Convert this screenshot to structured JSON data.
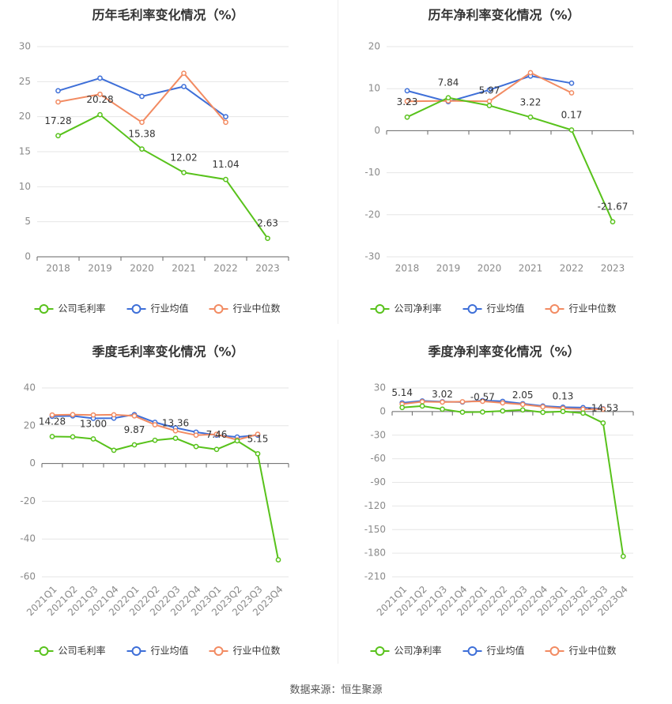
{
  "footer": {
    "source": "数据来源：恒生聚源"
  },
  "colors": {
    "company": "#58c21b",
    "avg": "#3e6fd8",
    "median": "#f28b62",
    "grid": "#e6e6e6",
    "axis": "#666666",
    "tick_text": "#8a8a8a"
  },
  "chart_data": [
    {
      "type": "line",
      "title": "历年毛利率变化情况（%）",
      "categories": [
        "2018",
        "2019",
        "2020",
        "2021",
        "2022",
        "2023"
      ],
      "ylim": [
        0,
        30
      ],
      "yticks": [
        0,
        5,
        10,
        15,
        20,
        25,
        30
      ],
      "rotate_x_labels": false,
      "grid": true,
      "legend_position": "bottom",
      "series": [
        {
          "name": "公司毛利率",
          "key": "company",
          "values": [
            17.28,
            20.28,
            15.38,
            12.02,
            11.04,
            2.63
          ],
          "labels": [
            "17.28",
            "20.28",
            "15.38",
            "12.02",
            "11.04",
            "2.63"
          ]
        },
        {
          "name": "行业均值",
          "key": "avg",
          "values": [
            23.7,
            25.5,
            22.9,
            24.3,
            20.0,
            null
          ]
        },
        {
          "name": "行业中位数",
          "key": "median",
          "values": [
            22.1,
            23.2,
            19.2,
            26.2,
            19.2,
            null
          ]
        }
      ]
    },
    {
      "type": "line",
      "title": "历年净利率变化情况（%）",
      "categories": [
        "2018",
        "2019",
        "2020",
        "2021",
        "2022",
        "2023"
      ],
      "ylim": [
        -30,
        20
      ],
      "yticks": [
        -30,
        -20,
        -10,
        0,
        10,
        20
      ],
      "rotate_x_labels": false,
      "grid": true,
      "legend_position": "bottom",
      "series": [
        {
          "name": "公司净利率",
          "key": "company",
          "values": [
            3.23,
            7.84,
            5.97,
            3.22,
            0.17,
            -21.67
          ],
          "labels": [
            "3.23",
            "7.84",
            "5.97",
            "3.22",
            "0.17",
            "-21.67"
          ]
        },
        {
          "name": "行业均值",
          "key": "avg",
          "values": [
            9.5,
            6.9,
            9.7,
            13.0,
            11.3,
            null
          ]
        },
        {
          "name": "行业中位数",
          "key": "median",
          "values": [
            7.0,
            7.1,
            7.0,
            13.8,
            9.0,
            null
          ]
        }
      ]
    },
    {
      "type": "line",
      "title": "季度毛利率变化情况（%）",
      "categories": [
        "2021Q1",
        "2021Q2",
        "2021Q3",
        "2021Q4",
        "2022Q1",
        "2022Q2",
        "2022Q3",
        "2022Q4",
        "2023Q1",
        "2023Q2",
        "2023Q3",
        "2023Q4"
      ],
      "ylim": [
        -60,
        40
      ],
      "yticks": [
        -60,
        -40,
        -20,
        0,
        20,
        40
      ],
      "rotate_x_labels": true,
      "grid": true,
      "legend_position": "bottom",
      "series": [
        {
          "name": "公司毛利率",
          "key": "company",
          "values": [
            14.28,
            14.1,
            13.0,
            7.0,
            9.87,
            12.3,
            13.36,
            9.0,
            7.46,
            12.0,
            5.15,
            -51.0
          ],
          "labels": [
            "14.28",
            "",
            "13.00",
            "",
            "9.87",
            "",
            "13.36",
            "",
            "7.46",
            "",
            "5.15",
            ""
          ]
        },
        {
          "name": "行业均值",
          "key": "avg",
          "values": [
            25.0,
            25.2,
            23.9,
            24.0,
            25.9,
            21.8,
            18.9,
            16.6,
            15.0,
            14.0,
            15.0,
            null
          ]
        },
        {
          "name": "行业中位数",
          "key": "median",
          "values": [
            25.7,
            25.9,
            25.7,
            25.8,
            25.2,
            20.5,
            17.3,
            15.0,
            15.5,
            12.5,
            15.5,
            null
          ]
        }
      ]
    },
    {
      "type": "line",
      "title": "季度净利率变化情况（%）",
      "categories": [
        "2021Q1",
        "2021Q2",
        "2021Q3",
        "2021Q4",
        "2022Q1",
        "2022Q2",
        "2022Q3",
        "2022Q4",
        "2023Q1",
        "2023Q2",
        "2023Q3",
        "2023Q4"
      ],
      "ylim": [
        -210,
        30
      ],
      "yticks": [
        -210,
        -180,
        -150,
        -120,
        -90,
        -60,
        -30,
        0,
        30
      ],
      "rotate_x_labels": true,
      "grid": true,
      "legend_position": "bottom",
      "series": [
        {
          "name": "公司净利率",
          "key": "company",
          "values": [
            5.14,
            7.0,
            3.02,
            -0.8,
            -0.57,
            0.8,
            2.05,
            -1.0,
            0.13,
            -2.0,
            -14.53,
            -184.0
          ],
          "labels": [
            "5.14",
            "",
            "3.02",
            "",
            "-0.57",
            "",
            "2.05",
            "",
            "0.13",
            "",
            "-14.53",
            ""
          ]
        },
        {
          "name": "行业均值",
          "key": "avg",
          "values": [
            11.0,
            13.5,
            12.5,
            12.0,
            14.0,
            13.0,
            10.0,
            7.0,
            5.5,
            5.0,
            3.5,
            null
          ]
        },
        {
          "name": "行业中位数",
          "key": "median",
          "values": [
            9.5,
            12.5,
            12.0,
            12.5,
            13.0,
            11.0,
            9.0,
            6.0,
            4.0,
            3.0,
            3.0,
            null
          ]
        }
      ]
    }
  ]
}
